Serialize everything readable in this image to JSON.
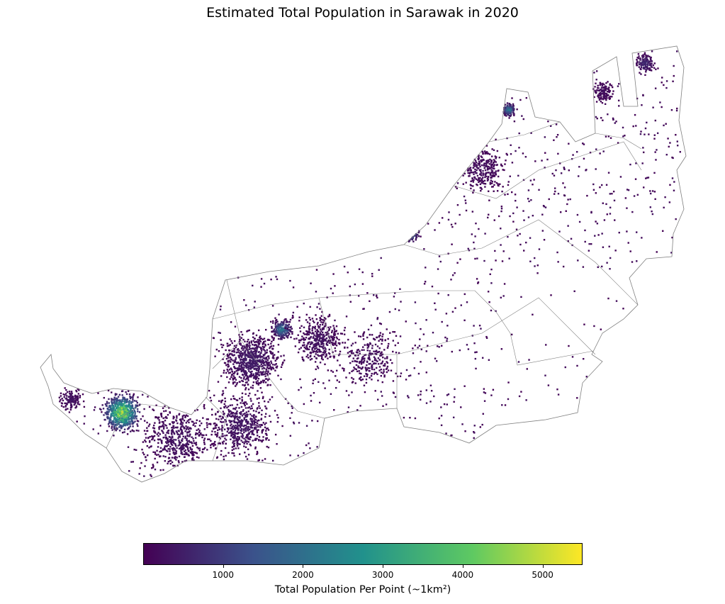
{
  "chart_data": {
    "type": "scatter",
    "title": "Estimated Total Population in Sarawak in 2020",
    "colorbar": {
      "label": "Total Population Per Point (~1km²)",
      "range": [
        0,
        5500
      ],
      "ticks": [
        1000,
        2000,
        3000,
        4000,
        5000
      ],
      "tick_labels": [
        "1000",
        "2000",
        "3000",
        "4000",
        "5000"
      ],
      "colormap": "viridis"
    },
    "region": "Sarawak",
    "year": 2020,
    "boundary_color": "#808080",
    "colormap_stops": [
      "#440154",
      "#3b528b",
      "#21918c",
      "#5ec962",
      "#fde725"
    ]
  }
}
